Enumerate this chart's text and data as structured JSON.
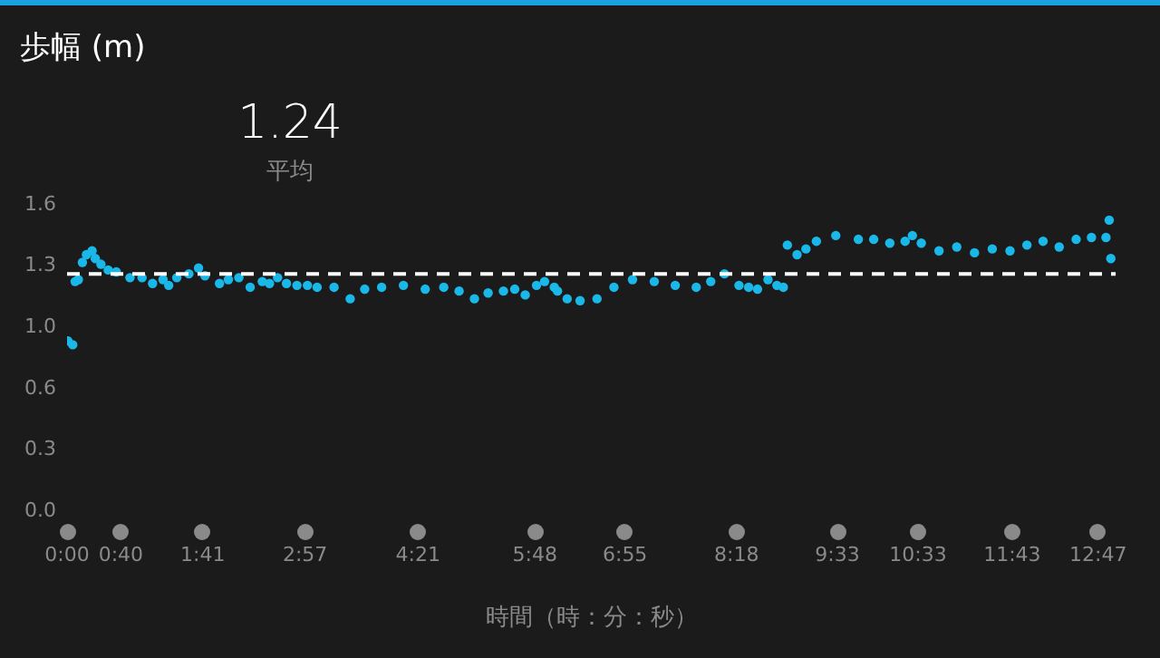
{
  "chart_data": {
    "type": "scatter",
    "title": "歩幅 (m)",
    "xlabel": "時間（時：分：秒）",
    "annotations": [
      "1.24",
      "平均"
    ],
    "xlim": [
      0,
      13.0
    ],
    "xticks": [
      {
        "value": 0,
        "label": "0:00"
      },
      {
        "value": 0.667,
        "label": "0:40"
      },
      {
        "value": 1.683,
        "label": "1:41"
      },
      {
        "value": 2.95,
        "label": "2:57"
      },
      {
        "value": 4.35,
        "label": "4:21"
      },
      {
        "value": 5.8,
        "label": "5:48"
      },
      {
        "value": 6.917,
        "label": "6:55"
      },
      {
        "value": 8.3,
        "label": "8:18"
      },
      {
        "value": 9.55,
        "label": "9:33"
      },
      {
        "value": 10.55,
        "label": "10:33"
      },
      {
        "value": 11.717,
        "label": "11:43"
      },
      {
        "value": 12.783,
        "label": "12:47"
      }
    ],
    "ylim": [
      0,
      1.6
    ],
    "yticks": [
      {
        "value": 0,
        "label": "0.0"
      },
      {
        "value": 0.32,
        "label": "0.3"
      },
      {
        "value": 0.64,
        "label": "0.6"
      },
      {
        "value": 0.96,
        "label": "1.0"
      },
      {
        "value": 1.28,
        "label": "1.3"
      },
      {
        "value": 1.6,
        "label": "1.6"
      }
    ],
    "ref_lines": [
      {
        "axis": "y",
        "value": 1.24,
        "color": "#ffffff",
        "line_style": "dashed"
      }
    ],
    "marker": "circle",
    "legend": false,
    "series": [
      {
        "color": "#1ab8e8",
        "x": [
          0.01,
          0.07,
          0.1,
          0.14,
          0.19,
          0.24,
          0.31,
          0.35,
          0.42,
          0.51,
          0.61,
          0.78,
          0.93,
          1.06,
          1.19,
          1.26,
          1.36,
          1.51,
          1.63,
          1.71,
          1.89,
          2.0,
          2.13,
          2.27,
          2.42,
          2.51,
          2.61,
          2.72,
          2.85,
          2.98,
          3.1,
          3.31,
          3.51,
          3.69,
          3.9,
          4.17,
          4.44,
          4.67,
          4.86,
          5.05,
          5.22,
          5.41,
          5.55,
          5.68,
          5.82,
          5.92,
          6.04,
          6.08,
          6.2,
          6.36,
          6.57,
          6.78,
          7.01,
          7.28,
          7.54,
          7.8,
          7.98,
          8.15,
          8.33,
          8.45,
          8.56,
          8.69,
          8.8,
          8.88,
          8.93,
          9.05,
          9.16,
          9.29,
          9.53,
          9.81,
          10.0,
          10.2,
          10.39,
          10.48,
          10.59,
          10.81,
          11.03,
          11.25,
          11.47,
          11.69,
          11.9,
          12.1,
          12.3,
          12.51,
          12.7,
          12.88,
          12.92,
          12.94
        ],
        "values": [
          0.89,
          0.87,
          1.2,
          1.21,
          1.3,
          1.34,
          1.36,
          1.32,
          1.29,
          1.26,
          1.25,
          1.22,
          1.22,
          1.19,
          1.21,
          1.18,
          1.22,
          1.24,
          1.27,
          1.23,
          1.19,
          1.21,
          1.22,
          1.17,
          1.2,
          1.19,
          1.22,
          1.19,
          1.18,
          1.18,
          1.17,
          1.17,
          1.11,
          1.16,
          1.17,
          1.18,
          1.16,
          1.17,
          1.15,
          1.11,
          1.14,
          1.15,
          1.16,
          1.13,
          1.18,
          1.2,
          1.17,
          1.15,
          1.11,
          1.1,
          1.11,
          1.17,
          1.21,
          1.2,
          1.18,
          1.17,
          1.2,
          1.24,
          1.18,
          1.17,
          1.16,
          1.21,
          1.18,
          1.17,
          1.39,
          1.34,
          1.37,
          1.41,
          1.44,
          1.42,
          1.42,
          1.4,
          1.41,
          1.44,
          1.4,
          1.36,
          1.38,
          1.35,
          1.37,
          1.36,
          1.39,
          1.41,
          1.38,
          1.42,
          1.43,
          1.43,
          1.52,
          1.32
        ]
      }
    ]
  }
}
